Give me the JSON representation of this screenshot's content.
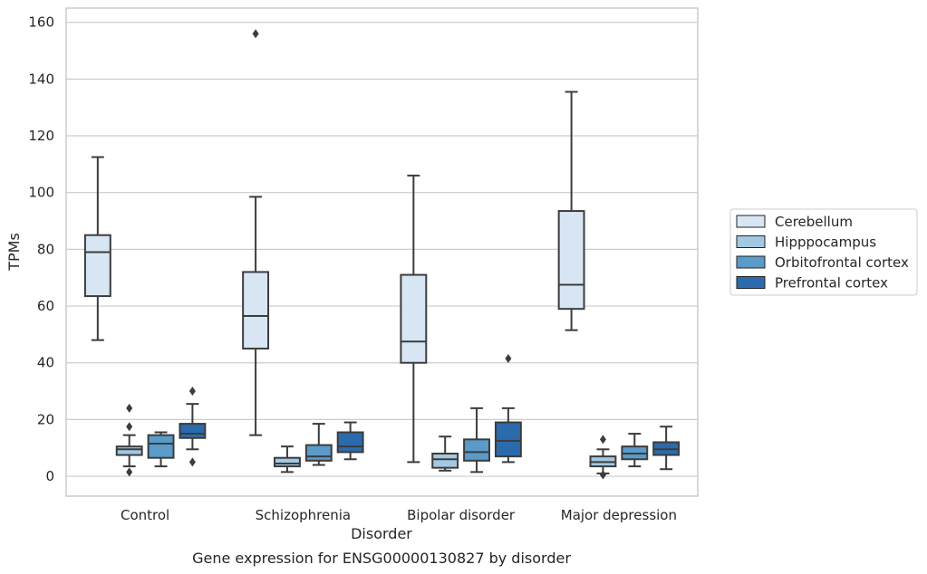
{
  "chart_data": {
    "type": "box",
    "title": "",
    "caption": "Gene expression for ENSG00000130827 by disorder",
    "xlabel": "Disorder",
    "ylabel": "TPMs",
    "ylim": [
      -7,
      165
    ],
    "yticks": [
      0,
      20,
      40,
      60,
      80,
      100,
      120,
      140,
      160
    ],
    "grid": "horizontal",
    "legend_placement": "right",
    "categories": [
      "Control",
      "Schizophrenia",
      "Bipolar disorder",
      "Major depression"
    ],
    "series": [
      {
        "name": "Cerebellum",
        "color": "#d8e6f4",
        "boxes": [
          {
            "whislo": 48,
            "q1": 63.5,
            "med": 79,
            "q3": 85,
            "whishi": 112.5,
            "fliers": []
          },
          {
            "whislo": 14.5,
            "q1": 45,
            "med": 56.5,
            "q3": 72,
            "whishi": 98.5,
            "fliers": [
              156
            ]
          },
          {
            "whislo": 5,
            "q1": 40,
            "med": 47.5,
            "q3": 71,
            "whishi": 106,
            "fliers": []
          },
          {
            "whislo": 51.5,
            "q1": 59,
            "med": 67.5,
            "q3": 93.5,
            "whishi": 135.5,
            "fliers": []
          }
        ]
      },
      {
        "name": "Hipppocampus",
        "color": "#a3c8e2",
        "boxes": [
          {
            "whislo": 3.5,
            "q1": 7.5,
            "med": 9.5,
            "q3": 10.5,
            "whishi": 14.5,
            "fliers": [
              1.5,
              17.5,
              24
            ]
          },
          {
            "whislo": 1.5,
            "q1": 3.5,
            "med": 4.5,
            "q3": 6.5,
            "whishi": 10.5,
            "fliers": []
          },
          {
            "whislo": 2,
            "q1": 3,
            "med": 6,
            "q3": 8,
            "whishi": 14,
            "fliers": []
          },
          {
            "whislo": 1,
            "q1": 3.5,
            "med": 5,
            "q3": 7,
            "whishi": 9.5,
            "fliers": [
              0.5,
              13
            ]
          }
        ]
      },
      {
        "name": "Orbitofrontal cortex",
        "color": "#5a9bc9",
        "boxes": [
          {
            "whislo": 3.5,
            "q1": 6.5,
            "med": 11.5,
            "q3": 14.5,
            "whishi": 15.5,
            "fliers": []
          },
          {
            "whislo": 4,
            "q1": 5.5,
            "med": 7,
            "q3": 11,
            "whishi": 18.5,
            "fliers": []
          },
          {
            "whislo": 1.5,
            "q1": 5.5,
            "med": 8.5,
            "q3": 13,
            "whishi": 24,
            "fliers": []
          },
          {
            "whislo": 3.5,
            "q1": 6,
            "med": 8,
            "q3": 10.5,
            "whishi": 15,
            "fliers": []
          }
        ]
      },
      {
        "name": "Prefrontal cortex",
        "color": "#2b6bac",
        "boxes": [
          {
            "whislo": 9.5,
            "q1": 13.5,
            "med": 15,
            "q3": 18.5,
            "whishi": 25.5,
            "fliers": [
              5,
              30
            ]
          },
          {
            "whislo": 6,
            "q1": 8.5,
            "med": 10.5,
            "q3": 15.5,
            "whishi": 19,
            "fliers": []
          },
          {
            "whislo": 5,
            "q1": 7,
            "med": 12.5,
            "q3": 19,
            "whishi": 24,
            "fliers": [
              41.5
            ]
          },
          {
            "whislo": 2.5,
            "q1": 7.5,
            "med": 9.5,
            "q3": 12,
            "whishi": 17.5,
            "fliers": []
          }
        ]
      }
    ]
  }
}
